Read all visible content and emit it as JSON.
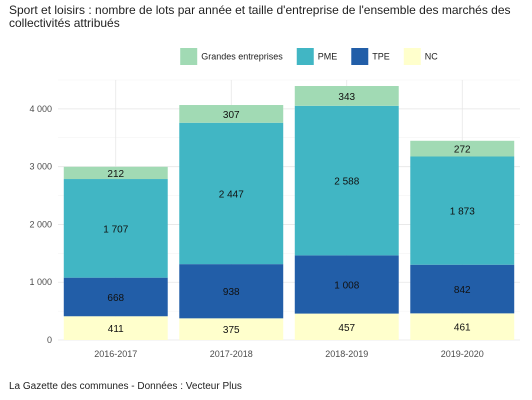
{
  "chart_data": {
    "type": "bar",
    "stacked": true,
    "title": "Sport et loisirs : nombre de lots par année et taille d'entreprise de l'ensemble des marchés des collectivités attribués",
    "caption": "La Gazette des communes - Données : Vecteur Plus",
    "xlabel": "",
    "ylabel": "",
    "categories": [
      "2016-2017",
      "2017-2018",
      "2018-2019",
      "2019-2020"
    ],
    "ylim": [
      0,
      4500
    ],
    "yticks": [
      0,
      1000,
      2000,
      3000,
      4000
    ],
    "ytick_labels": [
      "0",
      "1 000",
      "2 000",
      "3 000",
      "4 000"
    ],
    "grid": true,
    "legend_position": "top",
    "legend_order": [
      "Grandes entreprises",
      "PME",
      "TPE",
      "NC"
    ],
    "series": [
      {
        "name": "NC",
        "color": "#ffffcc",
        "values": [
          411,
          375,
          457,
          461
        ],
        "labels": [
          "411",
          "375",
          "457",
          "461"
        ]
      },
      {
        "name": "TPE",
        "color": "#225ea8",
        "values": [
          668,
          938,
          1008,
          842
        ],
        "labels": [
          "668",
          "938",
          "1 008",
          "842"
        ]
      },
      {
        "name": "PME",
        "color": "#41b6c4",
        "values": [
          1707,
          2447,
          2588,
          1873
        ],
        "labels": [
          "1 707",
          "2 447",
          "2 588",
          "1 873"
        ]
      },
      {
        "name": "Grandes entreprises",
        "color": "#a1dab4",
        "values": [
          212,
          307,
          343,
          272
        ],
        "labels": [
          "212",
          "307",
          "343",
          "272"
        ]
      }
    ]
  }
}
